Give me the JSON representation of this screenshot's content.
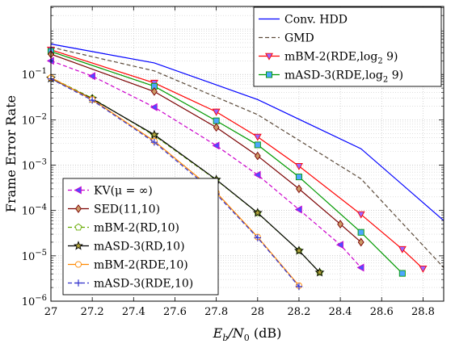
{
  "chart_data": {
    "type": "line",
    "xlabel_main": "E",
    "xlabel_sub": "b",
    "xlabel_mid": "/N",
    "xlabel_sub2": "0",
    "xlabel_tail": " (dB)",
    "ylabel": "Frame Error Rate",
    "xlim": [
      27,
      28.9
    ],
    "ylim_log10": [
      -6,
      0.5
    ],
    "yscale": "log",
    "grid": true,
    "x_ticks": [
      "27",
      "27.2",
      "27.4",
      "27.6",
      "27.8",
      "28",
      "28.2",
      "28.4",
      "28.6",
      "28.8"
    ],
    "y_ticks": [
      {
        "base": "10",
        "exp": "−1",
        "log": -1
      },
      {
        "base": "10",
        "exp": "−2",
        "log": -2
      },
      {
        "base": "10",
        "exp": "−3",
        "log": -3
      },
      {
        "base": "10",
        "exp": "−4",
        "log": -4
      },
      {
        "base": "10",
        "exp": "−5",
        "log": -5
      },
      {
        "base": "10",
        "exp": "−6",
        "log": -6
      }
    ],
    "series": [
      {
        "name": "Conv. HDD",
        "color": "#0000ff",
        "dash": "",
        "marker": "none",
        "x": [
          27,
          27.5,
          28,
          28.5,
          28.9
        ],
        "y": [
          0.47,
          0.18,
          0.028,
          0.0023,
          6e-05
        ]
      },
      {
        "name": "GMD",
        "color": "#5b4a3a",
        "dash": "5,3",
        "marker": "none",
        "x": [
          27,
          27.5,
          28,
          28.5,
          28.9
        ],
        "y": [
          0.4,
          0.12,
          0.013,
          0.0005,
          5.5e-06
        ]
      },
      {
        "name": "mBM-2(RDE,log₂ 9)",
        "color": "#ff0000",
        "dash": "",
        "marker": "tri-down",
        "markerFill": "#9966ff",
        "x": [
          27,
          27.5,
          27.8,
          28,
          28.2,
          28.5,
          28.7,
          28.8
        ],
        "y": [
          0.35,
          0.065,
          0.015,
          0.0042,
          0.00095,
          8.2e-05,
          1.4e-05,
          5.2e-06
        ]
      },
      {
        "name": "mASD-3(RDE,log₂ 9)",
        "color": "#009900",
        "dash": "",
        "marker": "square",
        "markerFill": "#4da6ff",
        "x": [
          27,
          27.5,
          27.8,
          28,
          28.2,
          28.5,
          28.7
        ],
        "y": [
          0.32,
          0.055,
          0.0095,
          0.0028,
          0.00055,
          3.3e-05,
          4.1e-06
        ]
      },
      {
        "name": "KV(μ = ∞)",
        "color": "#cc00cc",
        "dash": "5,3",
        "marker": "tri-left",
        "markerFill": "#4d4dff",
        "x": [
          27,
          27.2,
          27.5,
          27.8,
          28,
          28.2,
          28.4,
          28.5
        ],
        "y": [
          0.2,
          0.092,
          0.019,
          0.0027,
          0.00061,
          0.000105,
          1.75e-05,
          5.5e-06
        ]
      },
      {
        "name": "SED(11,10)",
        "color": "#7a0000",
        "dash": "",
        "marker": "diamond",
        "markerFill": "#cc9966",
        "x": [
          27,
          27.5,
          27.8,
          28,
          28.2,
          28.4,
          28.5
        ],
        "y": [
          0.28,
          0.042,
          0.0068,
          0.0016,
          0.0003,
          5e-05,
          2e-05
        ]
      },
      {
        "name": "mBM-2(RD,10)",
        "color": "#66aa00",
        "dash": "5,3",
        "marker": "pentagon",
        "markerFill": "#ffffff",
        "x": [
          27,
          27.2,
          27.5,
          27.8,
          28,
          28.2,
          28.3
        ],
        "y": [
          0.085,
          0.03,
          0.0045,
          0.00047,
          8.8e-05,
          1.3e-05,
          4.3e-06
        ]
      },
      {
        "name": "mASD-3(RD,10)",
        "color": "#000000",
        "dash": "",
        "marker": "star",
        "markerFill": "#b3a63a",
        "x": [
          27,
          27.2,
          27.5,
          27.8,
          28,
          28.2,
          28.3
        ],
        "y": [
          0.082,
          0.029,
          0.0047,
          0.00048,
          8.9e-05,
          1.3e-05,
          4.3e-06
        ]
      },
      {
        "name": "mBM-2(RDE,10)",
        "color": "#ff8800",
        "dash": "",
        "marker": "circle",
        "markerFill": "#ffffff",
        "x": [
          27,
          27.2,
          27.5,
          27.8,
          28,
          28.2
        ],
        "y": [
          0.085,
          0.028,
          0.0034,
          0.00025,
          2.6e-05,
          2.2e-06
        ]
      },
      {
        "name": "mASD-3(RDE,10)",
        "color": "#3333cc",
        "dash": "5,3",
        "marker": "plus",
        "markerFill": "none",
        "x": [
          27,
          27.2,
          27.5,
          27.8,
          28,
          28.2
        ],
        "y": [
          0.08,
          0.027,
          0.0032,
          0.00023,
          2.5e-05,
          2.1e-06
        ]
      }
    ],
    "legend_top_right": [
      0,
      1,
      2,
      3
    ],
    "legend_bottom_left": [
      4,
      5,
      6,
      7,
      8,
      9
    ],
    "legend_labels": {
      "0": {
        "text": "Conv. HDD"
      },
      "1": {
        "text": "GMD"
      },
      "2": {
        "text": "mBM-2(RDE,log",
        "sub": "2",
        "tail": " 9)"
      },
      "3": {
        "text": "mASD-3(RDE,log",
        "sub": "2",
        "tail": " 9)"
      },
      "4": {
        "text": "KV(μ = ∞)"
      },
      "5": {
        "text": "SED(11,10)"
      },
      "6": {
        "text": "mBM-2(RD,10)"
      },
      "7": {
        "text": "mASD-3(RD,10)"
      },
      "8": {
        "text": "mBM-2(RDE,10)"
      },
      "9": {
        "text": "mASD-3(RDE,10)"
      }
    }
  }
}
